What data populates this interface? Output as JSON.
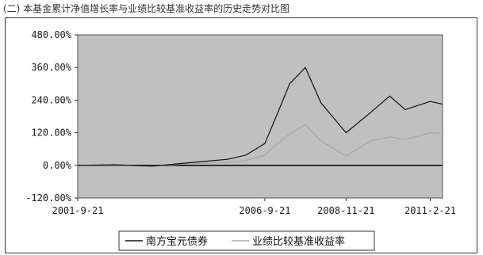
{
  "figure_title": "(二) 本基金累计净值增长率与业绩比较基准收益率的历史走势对比图",
  "colors": {
    "plot_background": "#c0c0c0",
    "fund_line": "#111111",
    "benchmark_line": "#a6a6a6",
    "zero_line": "#000000"
  },
  "chart_data": {
    "type": "line",
    "title": "",
    "xlabel": "",
    "ylabel": "",
    "ylim": [
      -120,
      480
    ],
    "y_ticks": [
      {
        "value": 480,
        "label": "480.00%"
      },
      {
        "value": 360,
        "label": "360.00%"
      },
      {
        "value": 240,
        "label": "240.00%"
      },
      {
        "value": 120,
        "label": "120.00%"
      },
      {
        "value": 0,
        "label": "0.00%"
      },
      {
        "value": -120,
        "label": "-120.00%"
      }
    ],
    "x_ticks": [
      "2001-9-21",
      "2006-9-21",
      "2008-11-21",
      "2011-2-21"
    ],
    "x": [
      "2001-9-21",
      "2002-9-21",
      "2003-9-21",
      "2004-9-21",
      "2005-9-21",
      "2006-3-21",
      "2006-9-21",
      "2007-1-21",
      "2007-5-21",
      "2007-10-21",
      "2008-3-21",
      "2008-11-21",
      "2009-7-21",
      "2010-1-21",
      "2010-6-21",
      "2011-2-21",
      "2011-6-21"
    ],
    "series": [
      {
        "name": "南方宝元债券",
        "values": [
          0,
          2,
          -3,
          10,
          22,
          38,
          80,
          190,
          300,
          360,
          230,
          120,
          195,
          255,
          205,
          235,
          225
        ]
      },
      {
        "name": "业绩比较基准收益率",
        "values": [
          0,
          1,
          -2,
          6,
          10,
          18,
          38,
          80,
          115,
          150,
          90,
          35,
          90,
          105,
          95,
          120,
          118
        ]
      }
    ],
    "legend_position": "bottom",
    "grid": false
  }
}
